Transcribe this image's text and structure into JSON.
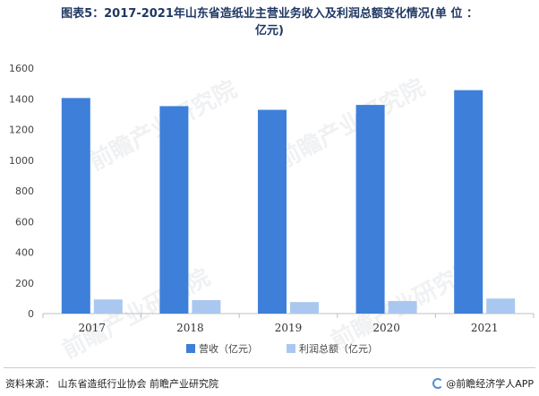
{
  "title_line1": "图表5：2017-2021年山东省造纸业主营业务收入及利润总额变化情况(单 位 ：",
  "title_line2": "亿元)",
  "source": "资料来源：  山东省造纸行业协会  前瞻产业研究院",
  "brand": "@前瞻经济学人APP",
  "watermark_text": "前瞻产业研究院",
  "colors": {
    "revenue": "#3d7fd9",
    "profit": "#aac8ef",
    "axis": "#bfbfbf",
    "title": "#1f3864"
  },
  "chart_data": {
    "type": "bar",
    "categories": [
      "2017",
      "2018",
      "2019",
      "2020",
      "2021"
    ],
    "series": [
      {
        "name": "营收（亿元）",
        "values": [
          1405,
          1352,
          1328,
          1360,
          1456
        ]
      },
      {
        "name": "利润总额（亿元）",
        "values": [
          92,
          88,
          75,
          82,
          98
        ]
      }
    ],
    "yticks": [
      0,
      200,
      400,
      600,
      800,
      1000,
      1200,
      1400,
      1600
    ],
    "ylim": [
      0,
      1600
    ],
    "xlabel": "",
    "ylabel": "",
    "legend_position": "bottom",
    "grid": false
  }
}
